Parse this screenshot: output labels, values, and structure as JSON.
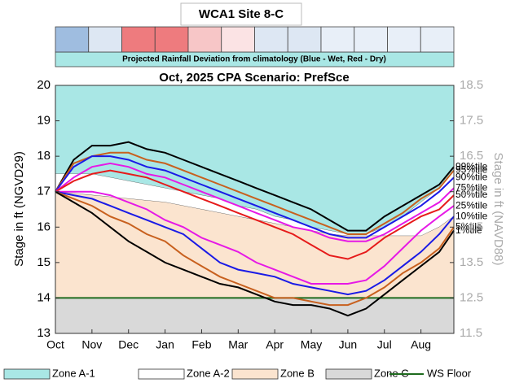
{
  "chart_data": {
    "type": "line",
    "header": "WCA1 Site 8-C",
    "rainfall_deviation": {
      "label": "Projected Rainfall Deviation from climatology (Blue - Wet, Red - Dry)",
      "colors": [
        "#9fbde0",
        "#dde7f3",
        "#ee7b7e",
        "#ee7b7e",
        "#f7c6c7",
        "#fbe3e4",
        "#dde7f3",
        "#dde7f3",
        "#e8eff8",
        "#e8eff8",
        "#e8eff8",
        "#e8eff8"
      ]
    },
    "title": "Oct, 2025  CPA Scenario: PrefSce",
    "ylabel": "Stage in ft (NGVD29)",
    "y2label": "Stage in ft (NAVD88)",
    "xlim": [
      0,
      10.9
    ],
    "xticks": [
      {
        "value": 0,
        "label": "Oct"
      },
      {
        "value": 1,
        "label": "Nov"
      },
      {
        "value": 2,
        "label": "Dec"
      },
      {
        "value": 3,
        "label": "Jan"
      },
      {
        "value": 4,
        "label": "Feb"
      },
      {
        "value": 5,
        "label": "Mar"
      },
      {
        "value": 6,
        "label": "Apr"
      },
      {
        "value": 7,
        "label": "May"
      },
      {
        "value": 8,
        "label": "Jun"
      },
      {
        "value": 9,
        "label": "Jul"
      },
      {
        "value": 10,
        "label": "Aug"
      }
    ],
    "ylim": [
      13,
      20
    ],
    "yticks": [
      13,
      14,
      15,
      16,
      17,
      18,
      19,
      20
    ],
    "y2lim": [
      11.5,
      18.5
    ],
    "y2ticks": [
      11.5,
      12.5,
      13.5,
      14.5,
      15.5,
      16.5,
      17.5,
      18.5
    ],
    "x": [
      0,
      0.5,
      1,
      1.5,
      2,
      2.5,
      3,
      3.5,
      4,
      4.5,
      5,
      5.5,
      6,
      6.5,
      7,
      7.5,
      8,
      8.5,
      9,
      9.5,
      10,
      10.5,
      10.9
    ],
    "zones": [
      {
        "name": "Zone A-1",
        "color": "#a9e7e5",
        "bottom": [
          17.5,
          17.5,
          17.5,
          17.4,
          17.3,
          17.2,
          17.1,
          17.0,
          16.9,
          16.8,
          16.6,
          16.5,
          16.3,
          16.2,
          16.0,
          15.9,
          15.8,
          15.8,
          16.0,
          16.3,
          16.7,
          17.1,
          17.6
        ]
      },
      {
        "name": "Zone A-2",
        "color": "#ffffff",
        "bottom": [
          17.0,
          16.95,
          16.9,
          16.85,
          16.8,
          16.75,
          16.7,
          16.6,
          16.5,
          16.4,
          16.3,
          16.2,
          16.1,
          16.0,
          15.9,
          15.8,
          15.75,
          15.75,
          15.75,
          15.75,
          15.75,
          16.0,
          16.3
        ]
      },
      {
        "name": "Zone B",
        "color": "#fbe4cf",
        "bottom": [
          14,
          14,
          14,
          14,
          14,
          14,
          14,
          14,
          14,
          14,
          14,
          14,
          14,
          14,
          14,
          14,
          14,
          14,
          14,
          14,
          14,
          14,
          14
        ]
      },
      {
        "name": "Zone C",
        "color": "#d9d9d9"
      }
    ],
    "ws_floor": {
      "name": "WS Floor",
      "color": "#1e6b1e",
      "value": 14
    },
    "series": [
      {
        "name": "99%tile",
        "color": "#000000",
        "values": [
          17.0,
          17.9,
          18.3,
          18.3,
          18.4,
          18.2,
          18.1,
          17.9,
          17.7,
          17.5,
          17.3,
          17.1,
          16.9,
          16.7,
          16.5,
          16.2,
          15.9,
          15.9,
          16.3,
          16.6,
          16.9,
          17.2,
          17.7
        ]
      },
      {
        "name": "95%tile",
        "color": "#c8601e",
        "values": [
          17.0,
          17.8,
          18.0,
          18.1,
          18.1,
          17.9,
          17.8,
          17.6,
          17.4,
          17.2,
          17.0,
          16.8,
          16.6,
          16.4,
          16.2,
          16.0,
          15.8,
          15.8,
          16.1,
          16.4,
          16.8,
          17.1,
          17.6
        ]
      },
      {
        "name": "90%tile",
        "color": "#1a1ae6",
        "values": [
          17.0,
          17.7,
          18.0,
          18.0,
          17.9,
          17.7,
          17.6,
          17.4,
          17.2,
          17.0,
          16.8,
          16.6,
          16.4,
          16.2,
          16.0,
          15.8,
          15.7,
          15.7,
          16.0,
          16.3,
          16.6,
          17.0,
          17.4
        ]
      },
      {
        "name": "75%tile",
        "color": "#e619e6",
        "values": [
          17.0,
          17.4,
          17.7,
          17.8,
          17.7,
          17.5,
          17.4,
          17.2,
          17.0,
          16.8,
          16.6,
          16.4,
          16.2,
          16.0,
          15.9,
          15.7,
          15.6,
          15.6,
          15.8,
          16.1,
          16.4,
          16.7,
          17.1
        ]
      },
      {
        "name": "50%tile",
        "color": "#e61a1a",
        "values": [
          17.0,
          17.3,
          17.5,
          17.6,
          17.5,
          17.4,
          17.2,
          17.0,
          16.8,
          16.6,
          16.4,
          16.2,
          16.0,
          15.8,
          15.5,
          15.2,
          15.1,
          15.3,
          15.7,
          16.0,
          16.3,
          16.5,
          16.9
        ]
      },
      {
        "name": "25%tile",
        "color": "#e619e6",
        "values": [
          17.0,
          17.0,
          17.0,
          16.9,
          16.7,
          16.5,
          16.2,
          16.0,
          15.7,
          15.5,
          15.3,
          15.0,
          14.8,
          14.6,
          14.4,
          14.4,
          14.4,
          14.5,
          14.9,
          15.4,
          15.9,
          16.3,
          16.6
        ]
      },
      {
        "name": "10%tile",
        "color": "#1a1ae6",
        "values": [
          17.0,
          16.9,
          16.8,
          16.6,
          16.4,
          16.2,
          16.0,
          15.8,
          15.4,
          15.0,
          14.8,
          14.7,
          14.6,
          14.4,
          14.3,
          14.2,
          14.1,
          14.2,
          14.5,
          14.9,
          15.3,
          15.8,
          16.3
        ]
      },
      {
        "name": "5%tile",
        "color": "#c8601e",
        "values": [
          17.0,
          16.8,
          16.6,
          16.3,
          16.1,
          15.8,
          15.6,
          15.2,
          14.9,
          14.6,
          14.4,
          14.2,
          14.0,
          14.0,
          13.9,
          13.8,
          13.8,
          14.0,
          14.3,
          14.7,
          15.0,
          15.4,
          16.0
        ]
      },
      {
        "name": "1%tile",
        "color": "#000000",
        "values": [
          17.0,
          16.7,
          16.4,
          16.0,
          15.6,
          15.3,
          15.0,
          14.8,
          14.6,
          14.4,
          14.3,
          14.1,
          13.9,
          13.8,
          13.8,
          13.7,
          13.5,
          13.7,
          14.1,
          14.5,
          14.9,
          15.3,
          15.9
        ]
      }
    ]
  }
}
